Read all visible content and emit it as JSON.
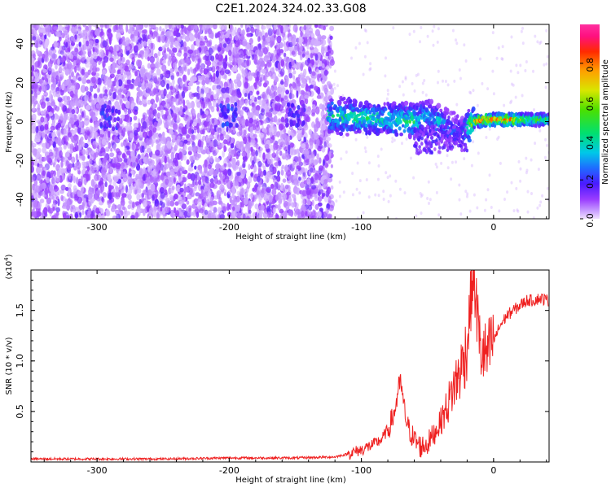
{
  "title": "C2E1.2024.324.02.33.G08",
  "chart_data": [
    {
      "type": "heatmap",
      "xlabel": "Height of straight line (km)",
      "ylabel": "Frequency (Hz)",
      "xlim": [
        -350,
        42
      ],
      "ylim": [
        -50,
        50
      ],
      "xticks": [
        -300,
        -200,
        -100,
        0
      ],
      "yticks": [
        -40,
        -20,
        0,
        20,
        40
      ],
      "colorbar": {
        "label": "Normalized spectral amplitude",
        "range": [
          0,
          1
        ],
        "ticks": [
          0.0,
          0.2,
          0.4,
          0.6,
          0.8
        ],
        "tick_labels": [
          "0.0",
          "0.2",
          "0.4",
          "0.6",
          "0.8"
        ]
      },
      "ridge": {
        "description_points_x": [
          -125,
          -100,
          -80,
          -60,
          -50,
          -40,
          -35,
          -25,
          -15,
          -5,
          0,
          10,
          20,
          30,
          42
        ],
        "center_frequency": [
          3,
          2,
          1,
          0,
          3,
          0,
          -3,
          -6,
          0,
          1,
          1,
          1,
          1,
          1,
          1
        ],
        "peak_amplitude": [
          0.45,
          0.5,
          0.45,
          0.5,
          0.35,
          0.4,
          0.3,
          0.25,
          0.75,
          0.9,
          0.85,
          0.9,
          0.7,
          0.6,
          0.55
        ]
      }
    },
    {
      "type": "line",
      "xlabel": "Height of straight line (km)",
      "ylabel": "SNR (10 * v/v)",
      "y_multiplier": "(x10^4)",
      "xlim": [
        -350,
        42
      ],
      "ylim": [
        0,
        1.9
      ],
      "xticks": [
        -300,
        -200,
        -100,
        0
      ],
      "yticks": [
        0.5,
        1.0,
        1.5
      ],
      "ytick_labels": [
        "0.5",
        "1.0",
        "1.5"
      ],
      "series": [
        {
          "color": "#ef2020",
          "x": [
            -350,
            -300,
            -250,
            -200,
            -150,
            -120,
            -110,
            -100,
            -90,
            -85,
            -80,
            -75,
            -72,
            -70,
            -68,
            -65,
            -60,
            -55,
            -50,
            -45,
            -40,
            -35,
            -30,
            -25,
            -20,
            -18,
            -16,
            -15,
            -12,
            -10,
            -5,
            0,
            5,
            10,
            15,
            20,
            25,
            30,
            35,
            42
          ],
          "y": [
            0.03,
            0.03,
            0.03,
            0.04,
            0.04,
            0.05,
            0.08,
            0.12,
            0.18,
            0.22,
            0.32,
            0.48,
            0.72,
            0.78,
            0.55,
            0.35,
            0.22,
            0.15,
            0.18,
            0.28,
            0.4,
            0.55,
            0.75,
            0.9,
            1.15,
            1.5,
            1.8,
            1.85,
            1.4,
            1.1,
            1.05,
            1.2,
            1.35,
            1.45,
            1.5,
            1.55,
            1.6,
            1.6,
            1.62,
            1.6
          ]
        }
      ]
    }
  ]
}
